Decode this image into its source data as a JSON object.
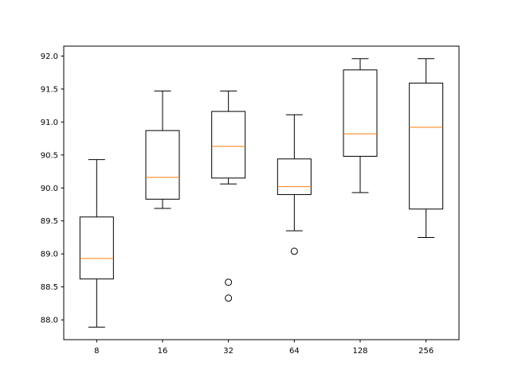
{
  "chart_data": {
    "type": "box",
    "title": "",
    "xlabel": "",
    "ylabel": "",
    "categories": [
      "8",
      "16",
      "32",
      "64",
      "128",
      "256"
    ],
    "ylim": [
      87.7,
      92.15
    ],
    "yticks": [
      88.0,
      88.5,
      89.0,
      89.5,
      90.0,
      90.5,
      91.0,
      91.5,
      92.0
    ],
    "ytick_labels": [
      "88.0",
      "88.5",
      "89.0",
      "89.5",
      "90.0",
      "90.5",
      "91.0",
      "91.5",
      "92.0"
    ],
    "boxes": [
      {
        "category": "8",
        "whisker_low": 87.89,
        "q1": 88.62,
        "median": 88.93,
        "q3": 89.56,
        "whisker_high": 90.43,
        "outliers": []
      },
      {
        "category": "16",
        "whisker_low": 89.69,
        "q1": 89.83,
        "median": 90.16,
        "q3": 90.87,
        "whisker_high": 91.47,
        "outliers": []
      },
      {
        "category": "32",
        "whisker_low": 90.06,
        "q1": 90.15,
        "median": 90.63,
        "q3": 91.16,
        "whisker_high": 91.47,
        "outliers": [
          88.57,
          88.33
        ]
      },
      {
        "category": "64",
        "whisker_low": 89.35,
        "q1": 89.9,
        "median": 90.02,
        "q3": 90.44,
        "whisker_high": 91.11,
        "outliers": [
          89.04
        ]
      },
      {
        "category": "128",
        "whisker_low": 89.93,
        "q1": 90.48,
        "median": 90.82,
        "q3": 91.79,
        "whisker_high": 91.96,
        "outliers": []
      },
      {
        "category": "256",
        "whisker_low": 89.25,
        "q1": 89.68,
        "median": 90.92,
        "q3": 91.59,
        "whisker_high": 91.96,
        "outliers": []
      }
    ],
    "colors": {
      "box": "#000000",
      "median": "#ff7f0e",
      "outlier": "#000000"
    },
    "grid": false,
    "legend": "none"
  }
}
